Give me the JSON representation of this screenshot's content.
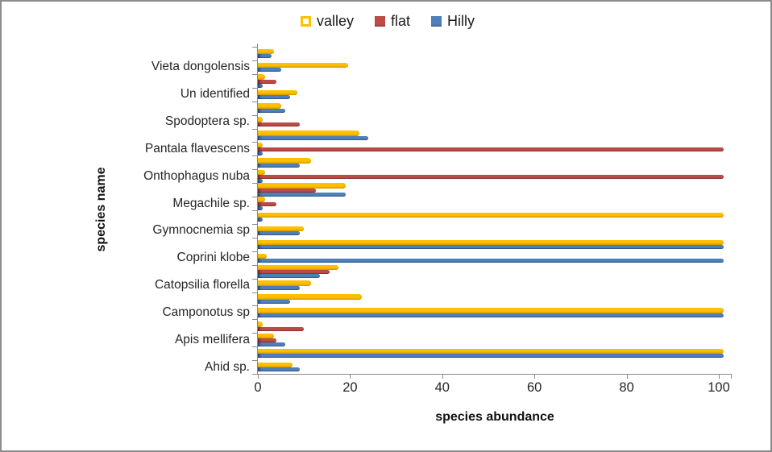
{
  "chart_data": {
    "type": "bar",
    "orientation": "horizontal",
    "title": "",
    "xlabel": "species abundance",
    "ylabel": "species name",
    "xlim": [
      0,
      100
    ],
    "x_tick_labels": [
      "0",
      "20",
      "40",
      "60",
      "80",
      "100"
    ],
    "grid": false,
    "legend_position": "top-center",
    "legend": [
      {
        "name": "valley",
        "color": "#FFC000",
        "swatch_style": "outlined"
      },
      {
        "name": "flat",
        "color": "#BE4C48",
        "swatch_style": "solid"
      },
      {
        "name": "Hilly",
        "color": "#4F81BD",
        "swatch_style": "solid"
      }
    ],
    "series_order": [
      "valley",
      "flat",
      "hilly"
    ],
    "rows": [
      {
        "label": "",
        "valley": 3.5,
        "flat": 0,
        "hilly": 3
      },
      {
        "label": "Vieta dongolensis",
        "valley": 19.5,
        "flat": 0,
        "hilly": 5
      },
      {
        "label": "",
        "valley": 1.5,
        "flat": 4,
        "hilly": 1
      },
      {
        "label": "Un identified",
        "valley": 8.5,
        "flat": 0,
        "hilly": 7
      },
      {
        "label": "",
        "valley": 5,
        "flat": 0,
        "hilly": 6
      },
      {
        "label": "Spodoptera sp.",
        "valley": 1,
        "flat": 9,
        "hilly": 0
      },
      {
        "label": "",
        "valley": 22,
        "flat": 0,
        "hilly": 24
      },
      {
        "label": "Pantala flavescens",
        "valley": 1,
        "flat": 101,
        "hilly": 1
      },
      {
        "label": "",
        "valley": 11.5,
        "flat": 0,
        "hilly": 9
      },
      {
        "label": "Onthophagus nuba",
        "valley": 1.5,
        "flat": 101,
        "hilly": 1
      },
      {
        "label": "",
        "valley": 19,
        "flat": 12.5,
        "hilly": 19
      },
      {
        "label": "Megachile sp.",
        "valley": 1.5,
        "flat": 4,
        "hilly": 1
      },
      {
        "label": "",
        "valley": 101,
        "flat": 0,
        "hilly": 1
      },
      {
        "label": "Gymnocnemia sp",
        "valley": 10,
        "flat": 0,
        "hilly": 9
      },
      {
        "label": "",
        "valley": 101,
        "flat": 0,
        "hilly": 101
      },
      {
        "label": "Coprini klobe",
        "valley": 2,
        "flat": 0,
        "hilly": 101
      },
      {
        "label": "",
        "valley": 17.5,
        "flat": 15.5,
        "hilly": 13.5
      },
      {
        "label": "Catopsilia florella",
        "valley": 11.5,
        "flat": 0,
        "hilly": 9
      },
      {
        "label": "",
        "valley": 22.5,
        "flat": 0,
        "hilly": 7
      },
      {
        "label": "Camponotus sp",
        "valley": 101,
        "flat": 0,
        "hilly": 101
      },
      {
        "label": "",
        "valley": 1,
        "flat": 10,
        "hilly": 0
      },
      {
        "label": "Apis mellifera",
        "valley": 3.5,
        "flat": 4,
        "hilly": 6
      },
      {
        "label": "",
        "valley": 101,
        "flat": 0,
        "hilly": 101
      },
      {
        "label": "Ahid sp.",
        "valley": 7.5,
        "flat": 0,
        "hilly": 9
      }
    ]
  }
}
